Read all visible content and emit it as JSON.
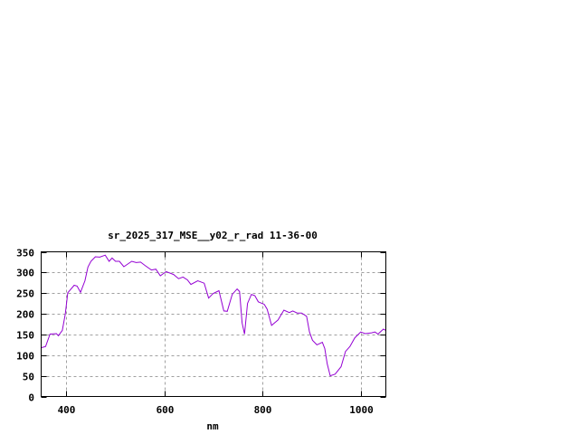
{
  "chart_data": {
    "type": "line",
    "title": "sr_2025_317_MSE__y02_r_rad 11-36-00",
    "xlabel": "nm",
    "ylabel": "",
    "xlim": [
      350,
      1050
    ],
    "ylim": [
      0,
      350
    ],
    "xticks": [
      400,
      600,
      800,
      1000
    ],
    "yticks": [
      0,
      50,
      100,
      150,
      200,
      250,
      300,
      350
    ],
    "grid": true,
    "line_color": "#9400d3",
    "grid_color": "#a0a0a0",
    "series": [
      {
        "x": [
          350,
          359,
          368,
          381,
          385,
          393,
          399,
          404,
          417,
          423,
          430,
          439,
          445,
          451,
          460,
          469,
          480,
          488,
          494,
          501,
          509,
          518,
          534,
          543,
          552,
          561,
          574,
          583,
          592,
          604,
          619,
          629,
          638,
          647,
          654,
          668,
          681,
          690,
          699,
          711,
          721,
          728,
          738,
          748,
          753,
          758,
          763,
          769,
          777,
          784,
          791,
          803,
          809,
          818,
          831,
          843,
          854,
          861,
          870,
          879,
          889,
          895,
          901,
          910,
          921,
          926,
          931,
          937,
          947,
          959,
          968,
          977,
          987,
          999,
          1008,
          1021,
          1028,
          1034,
          1045,
          1050
        ],
        "y": [
          118,
          121,
          151,
          152,
          147,
          160,
          200,
          251,
          269,
          267,
          252,
          280,
          313,
          327,
          338,
          337,
          342,
          327,
          335,
          327,
          327,
          314,
          327,
          324,
          325,
          317,
          306,
          308,
          292,
          302,
          295,
          285,
          289,
          282,
          271,
          280,
          274,
          238,
          249,
          256,
          207,
          206,
          247,
          260,
          254,
          178,
          151,
          225,
          247,
          244,
          229,
          223,
          211,
          172,
          185,
          209,
          203,
          207,
          202,
          202,
          194,
          156,
          136,
          125,
          131,
          116,
          79,
          50,
          54,
          72,
          109,
          121,
          142,
          156,
          152,
          154,
          156,
          151,
          163,
          160
        ]
      }
    ]
  }
}
